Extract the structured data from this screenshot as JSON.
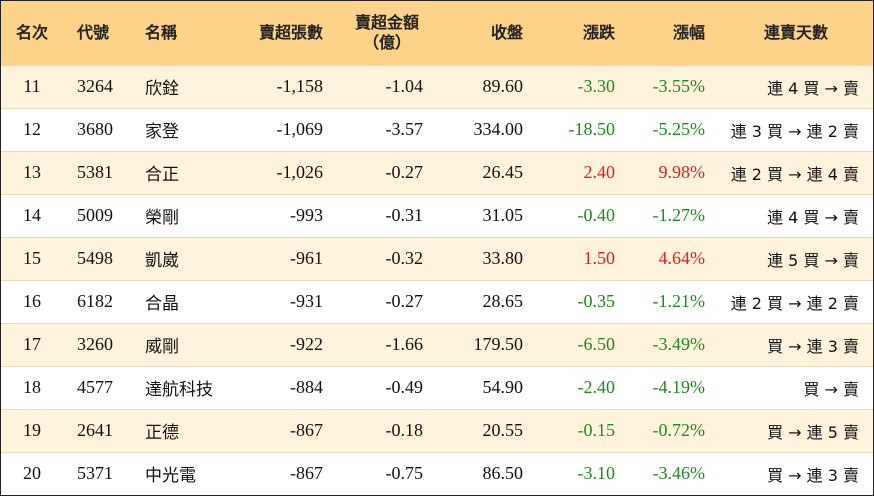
{
  "headers": {
    "rank": "名次",
    "code": "代號",
    "name": "名稱",
    "net_sell_lots": "賣超張數",
    "net_sell_amount_line1": "賣超金額",
    "net_sell_amount_line2": "（億）",
    "close": "收盤",
    "change": "漲跌",
    "change_pct": "漲幅",
    "streak": "連賣天數"
  },
  "rows": [
    {
      "rank": "11",
      "code": "3264",
      "name": "欣銓",
      "lots": "-1,158",
      "amount": "-1.04",
      "close": "89.60",
      "change": "-3.30",
      "pct": "-3.55%",
      "dir": "down",
      "streak": "連 4 買 → 賣"
    },
    {
      "rank": "12",
      "code": "3680",
      "name": "家登",
      "lots": "-1,069",
      "amount": "-3.57",
      "close": "334.00",
      "change": "-18.50",
      "pct": "-5.25%",
      "dir": "down",
      "streak": "連 3 買 → 連 2 賣"
    },
    {
      "rank": "13",
      "code": "5381",
      "name": "合正",
      "lots": "-1,026",
      "amount": "-0.27",
      "close": "26.45",
      "change": "2.40",
      "pct": "9.98%",
      "dir": "up",
      "streak": "連 2 買 → 連 4 賣"
    },
    {
      "rank": "14",
      "code": "5009",
      "name": "榮剛",
      "lots": "-993",
      "amount": "-0.31",
      "close": "31.05",
      "change": "-0.40",
      "pct": "-1.27%",
      "dir": "down",
      "streak": "連 4 買 → 賣"
    },
    {
      "rank": "15",
      "code": "5498",
      "name": "凱崴",
      "lots": "-961",
      "amount": "-0.32",
      "close": "33.80",
      "change": "1.50",
      "pct": "4.64%",
      "dir": "up",
      "streak": "連 5 買 → 賣"
    },
    {
      "rank": "16",
      "code": "6182",
      "name": "合晶",
      "lots": "-931",
      "amount": "-0.27",
      "close": "28.65",
      "change": "-0.35",
      "pct": "-1.21%",
      "dir": "down",
      "streak": "連 2 買 → 連 2 賣"
    },
    {
      "rank": "17",
      "code": "3260",
      "name": "威剛",
      "lots": "-922",
      "amount": "-1.66",
      "close": "179.50",
      "change": "-6.50",
      "pct": "-3.49%",
      "dir": "down",
      "streak": "買 → 連 3 賣"
    },
    {
      "rank": "18",
      "code": "4577",
      "name": "達航科技",
      "lots": "-884",
      "amount": "-0.49",
      "close": "54.90",
      "change": "-2.40",
      "pct": "-4.19%",
      "dir": "down",
      "streak": "買 → 賣"
    },
    {
      "rank": "19",
      "code": "2641",
      "name": "正德",
      "lots": "-867",
      "amount": "-0.18",
      "close": "20.55",
      "change": "-0.15",
      "pct": "-0.72%",
      "dir": "down",
      "streak": "買 → 連 5 賣"
    },
    {
      "rank": "20",
      "code": "5371",
      "name": "中光電",
      "lots": "-867",
      "amount": "-0.75",
      "close": "86.50",
      "change": "-3.10",
      "pct": "-3.46%",
      "dir": "down",
      "streak": "買 → 連 3 賣"
    }
  ],
  "colors": {
    "header_bg": "#ffd28a",
    "odd_row_bg": "#fff3dc",
    "up": "#e02020",
    "down": "#1e8a1e"
  }
}
